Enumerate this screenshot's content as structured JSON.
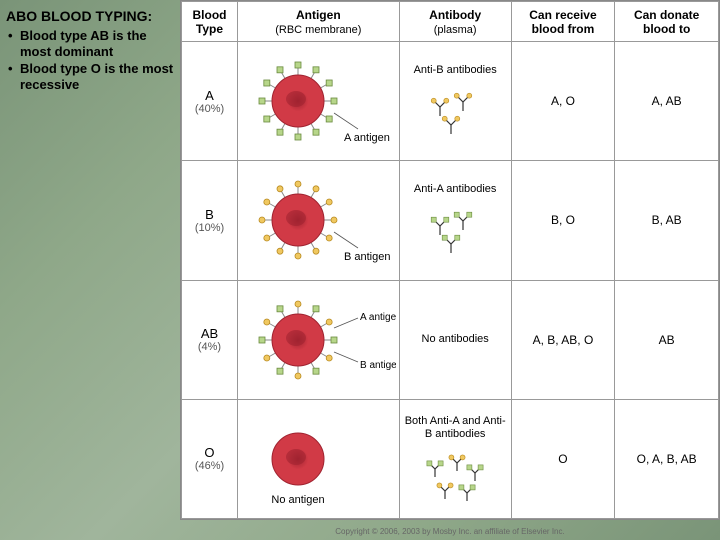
{
  "sidebar": {
    "title": "ABO BLOOD TYPING:",
    "bullets": [
      "Blood type AB is the most dominant",
      "Blood type O is the most recessive"
    ]
  },
  "headers": {
    "bloodType": "Blood Type",
    "antigen": "Antigen",
    "antigenSub": "(RBC membrane)",
    "antibody": "Antibody",
    "antibodySub": "(plasma)",
    "receive": "Can receive blood from",
    "donate": "Can donate blood to"
  },
  "colors": {
    "rbcFill": "#d13a46",
    "rbcDark": "#a02330",
    "antigenA": "#b7d68a",
    "antigenAStroke": "#6a8a3e",
    "antigenB": "#f0c860",
    "antigenBStroke": "#b88a20",
    "antibodyStroke": "#333333",
    "labelLine": "#555555"
  },
  "rows": [
    {
      "type": "A",
      "pct": "(40%)",
      "antigens": [
        "A"
      ],
      "antigenLabel": "A antigen",
      "antibody": "Anti-B antibodies",
      "antibodyShape": "B",
      "receive": "A, O",
      "donate": "A, AB"
    },
    {
      "type": "B",
      "pct": "(10%)",
      "antigens": [
        "B"
      ],
      "antigenLabel": "B antigen",
      "antibody": "Anti-A antibodies",
      "antibodyShape": "A",
      "receive": "B, O",
      "donate": "B, AB"
    },
    {
      "type": "AB",
      "pct": "(4%)",
      "antigens": [
        "A",
        "B"
      ],
      "antigenLabel": "A antigen",
      "antigenLabel2": "B antigen",
      "antibody": "No antibodies",
      "antibodyShape": "none",
      "receive": "A, B, AB, O",
      "donate": "AB"
    },
    {
      "type": "O",
      "pct": "(46%)",
      "antigens": [],
      "antigenLabel": "No antigen",
      "antibody": "Both Anti-A and Anti-B antibodies",
      "antibodyShape": "both",
      "receive": "O",
      "donate": "O, A, B, AB"
    }
  ],
  "copyright": "Copyright © 2006, 2003 by Mosby Inc. an affiliate of Elsevier Inc."
}
